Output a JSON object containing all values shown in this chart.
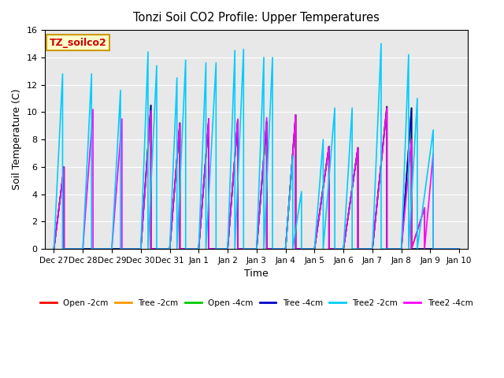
{
  "title": "Tonzi Soil CO2 Profile: Upper Temperatures",
  "xlabel": "Time",
  "ylabel": "Soil Temperature (C)",
  "ylim": [
    0,
    16
  ],
  "annotation_text": "TZ_soilco2",
  "annotation_bbox_facecolor": "#ffffcc",
  "annotation_bbox_edgecolor": "#cc9900",
  "annotation_text_color": "#cc0000",
  "bg_color": "#e8e8e8",
  "series_order": [
    "Open -2cm",
    "Tree -2cm",
    "Open -4cm",
    "Tree -4cm",
    "Tree2 -4cm",
    "Tree2 -2cm"
  ],
  "series": {
    "Open -2cm": {
      "color": "#ff0000",
      "x": [
        0,
        0.35,
        0.35,
        1.0,
        1.0,
        2.35,
        2.35,
        3.0,
        3.0,
        3.35,
        3.35,
        4.0,
        4.0,
        4.35,
        4.35,
        5.0,
        5.0,
        5.35,
        5.35,
        6.0,
        6.0,
        6.35,
        6.35,
        7.0,
        7.0,
        7.35,
        7.35,
        8.0,
        8.0,
        8.35,
        8.35,
        9.0,
        9.0,
        9.5,
        9.5,
        10.0,
        10.0,
        10.5,
        10.5,
        11.0,
        11.0,
        11.5,
        11.5,
        12.0,
        12.0,
        12.35,
        12.35,
        12.8,
        12.8,
        14.0
      ],
      "y": [
        0,
        6.0,
        0,
        0,
        0,
        0,
        0,
        0,
        0,
        10.5,
        0,
        0,
        0,
        9.2,
        0,
        0,
        0,
        9.5,
        0,
        0,
        0,
        9.4,
        0,
        0,
        0,
        9.3,
        0,
        0,
        0,
        9.8,
        0,
        0,
        0,
        7.5,
        0,
        0,
        0,
        7.4,
        0,
        0,
        0,
        10.4,
        0,
        0,
        0,
        10.3,
        0,
        3.0,
        0,
        0
      ]
    },
    "Tree -2cm": {
      "color": "#ff9900",
      "x": [
        0,
        0.35,
        0.35,
        1.0,
        1.0,
        2.35,
        2.35,
        3.0,
        3.0,
        3.35,
        3.35,
        4.0,
        4.0,
        4.35,
        4.35,
        5.0,
        5.0,
        5.35,
        5.35,
        6.0,
        6.0,
        6.35,
        6.35,
        7.0,
        7.0,
        7.35,
        7.35,
        8.0,
        8.0,
        8.35,
        8.35,
        9.0,
        9.0,
        9.5,
        9.5,
        10.0,
        10.0,
        10.5,
        10.5,
        11.0,
        11.0,
        11.5,
        11.5,
        12.0,
        12.0,
        12.35,
        12.35,
        14.0
      ],
      "y": [
        0,
        6.0,
        0,
        0,
        0,
        0,
        0,
        0,
        0,
        10.5,
        0,
        0,
        0,
        9.2,
        0,
        0,
        0,
        9.5,
        0,
        0,
        0,
        9.4,
        0,
        0,
        0,
        9.3,
        0,
        0,
        0,
        9.8,
        0,
        0,
        0,
        7.5,
        0,
        0,
        0,
        7.4,
        0,
        0,
        0,
        10.4,
        0,
        0,
        0,
        10.3,
        0,
        0
      ]
    },
    "Open -4cm": {
      "color": "#00cc00",
      "x": [
        0,
        0.35,
        0.35,
        1.0,
        1.0,
        2.35,
        2.35,
        3.0,
        3.0,
        3.35,
        3.35,
        4.0,
        4.0,
        4.35,
        4.35,
        5.0,
        5.0,
        5.35,
        5.35,
        6.0,
        6.0,
        6.35,
        6.35,
        7.0,
        7.0,
        7.35,
        7.35,
        8.0,
        8.0,
        8.35,
        8.35,
        9.0,
        9.0,
        9.5,
        9.5,
        10.0,
        10.0,
        10.5,
        10.5,
        11.0,
        11.0,
        11.5,
        11.5,
        12.0,
        12.0,
        12.35,
        12.35,
        14.0
      ],
      "y": [
        0,
        6.0,
        0,
        0,
        0,
        0,
        0,
        0,
        0,
        10.5,
        0,
        0,
        0,
        9.2,
        0,
        0,
        0,
        9.5,
        0,
        0,
        0,
        9.4,
        0,
        0,
        0,
        9.3,
        0,
        0,
        0,
        9.8,
        0,
        0,
        0,
        7.5,
        0,
        0,
        0,
        7.4,
        0,
        0,
        0,
        10.4,
        0,
        0,
        0,
        10.3,
        0,
        0
      ]
    },
    "Tree -4cm": {
      "color": "#0000cc",
      "x": [
        0,
        0.35,
        0.35,
        1.0,
        1.0,
        2.35,
        2.35,
        3.0,
        3.0,
        3.35,
        3.35,
        4.0,
        4.0,
        4.35,
        4.35,
        5.0,
        5.0,
        5.35,
        5.35,
        6.0,
        6.0,
        6.35,
        6.35,
        7.0,
        7.0,
        7.35,
        7.35,
        8.0,
        8.0,
        8.35,
        8.35,
        9.0,
        9.0,
        9.5,
        9.5,
        10.0,
        10.0,
        10.5,
        10.5,
        11.0,
        11.0,
        11.5,
        11.5,
        12.0,
        12.0,
        12.35,
        12.35,
        14.0
      ],
      "y": [
        0,
        6.0,
        0,
        0,
        0,
        0,
        0,
        0,
        0,
        10.5,
        0,
        0,
        0,
        9.2,
        0,
        0,
        0,
        9.5,
        0,
        0,
        0,
        9.4,
        0,
        0,
        0,
        9.3,
        0,
        0,
        0,
        9.8,
        0,
        0,
        0,
        7.5,
        0,
        0,
        0,
        7.4,
        0,
        0,
        0,
        10.4,
        0,
        0,
        0,
        10.3,
        0,
        0
      ]
    },
    "Tree2 -2cm": {
      "color": "#00ccff",
      "x": [
        0,
        0.3,
        0.3,
        1.0,
        1.0,
        1.3,
        1.3,
        2.0,
        2.0,
        2.3,
        2.3,
        3.0,
        3.0,
        3.25,
        3.25,
        3.55,
        3.55,
        4.0,
        4.0,
        4.25,
        4.25,
        4.55,
        4.55,
        5.0,
        5.0,
        5.25,
        5.25,
        5.6,
        5.6,
        6.0,
        6.0,
        6.25,
        6.25,
        6.55,
        6.55,
        7.0,
        7.0,
        7.25,
        7.25,
        7.55,
        7.55,
        8.0,
        8.0,
        8.25,
        8.25,
        8.55,
        8.55,
        9.0,
        9.0,
        9.3,
        9.3,
        9.7,
        9.7,
        10.0,
        10.0,
        10.3,
        10.3,
        11.0,
        11.0,
        11.3,
        11.3,
        12.0,
        12.0,
        12.25,
        12.25,
        12.55,
        12.55,
        13.1,
        13.1,
        14.0
      ],
      "y": [
        0,
        12.8,
        0,
        0,
        0,
        12.8,
        0,
        0,
        0,
        11.6,
        0,
        0,
        0,
        14.4,
        0,
        13.4,
        0,
        0,
        0,
        12.5,
        0,
        13.8,
        0,
        0,
        0,
        13.6,
        0,
        13.6,
        0,
        0,
        0,
        14.5,
        0,
        14.6,
        0,
        0,
        0,
        14.0,
        0,
        14.0,
        0,
        0,
        0,
        6.8,
        0,
        4.2,
        0,
        0,
        0,
        8.0,
        0,
        10.3,
        0,
        0,
        0,
        10.3,
        0,
        0,
        0,
        15.0,
        0,
        0,
        0,
        14.2,
        0,
        11.0,
        0,
        8.7,
        0,
        0
      ]
    },
    "Tree2 -4cm": {
      "color": "#ff00ff",
      "x": [
        0,
        0.35,
        0.35,
        1.0,
        1.0,
        1.35,
        1.35,
        2.0,
        2.0,
        2.35,
        2.35,
        3.0,
        3.0,
        3.35,
        3.35,
        4.0,
        4.0,
        4.35,
        4.35,
        5.0,
        5.0,
        5.35,
        5.35,
        6.0,
        6.0,
        6.35,
        6.35,
        7.0,
        7.0,
        7.35,
        7.35,
        8.0,
        8.0,
        8.35,
        8.35,
        9.0,
        9.0,
        9.5,
        9.5,
        10.0,
        10.0,
        10.5,
        10.5,
        11.0,
        11.0,
        11.5,
        11.5,
        12.0,
        12.0,
        12.35,
        12.35,
        12.8,
        12.8,
        13.1,
        13.1,
        14.0
      ],
      "y": [
        0,
        6.0,
        0,
        0,
        0,
        10.2,
        0,
        0,
        0,
        9.5,
        0,
        0,
        0,
        10.1,
        0,
        0,
        0,
        9.2,
        0,
        0,
        0,
        9.5,
        0,
        0,
        0,
        9.5,
        0,
        0,
        0,
        9.6,
        0,
        0,
        0,
        9.8,
        0,
        0,
        0,
        7.5,
        0,
        0,
        0,
        7.4,
        0,
        0,
        0,
        10.3,
        0,
        0,
        0,
        8.0,
        0,
        3.0,
        0,
        7.0,
        0,
        0
      ]
    }
  },
  "xtick_positions": [
    0,
    1,
    2,
    3,
    4,
    5,
    6,
    7,
    8,
    9,
    10,
    11,
    12,
    13,
    14
  ],
  "xtick_labels": [
    "Dec 27",
    "Dec 28",
    "Dec 29",
    "Dec 30",
    "Dec 31",
    "Jan 1",
    "Jan 2",
    "Jan 3",
    "Jan 4",
    "Jan 5",
    "Jan 6",
    "Jan 7",
    "Jan 8",
    "Jan 9",
    "Jan 10"
  ],
  "legend_entries": [
    "Open -2cm",
    "Tree -2cm",
    "Open -4cm",
    "Tree -4cm",
    "Tree2 -2cm",
    "Tree2 -4cm"
  ],
  "legend_colors": [
    "#ff0000",
    "#ff9900",
    "#00cc00",
    "#0000cc",
    "#00ccff",
    "#ff00ff"
  ]
}
